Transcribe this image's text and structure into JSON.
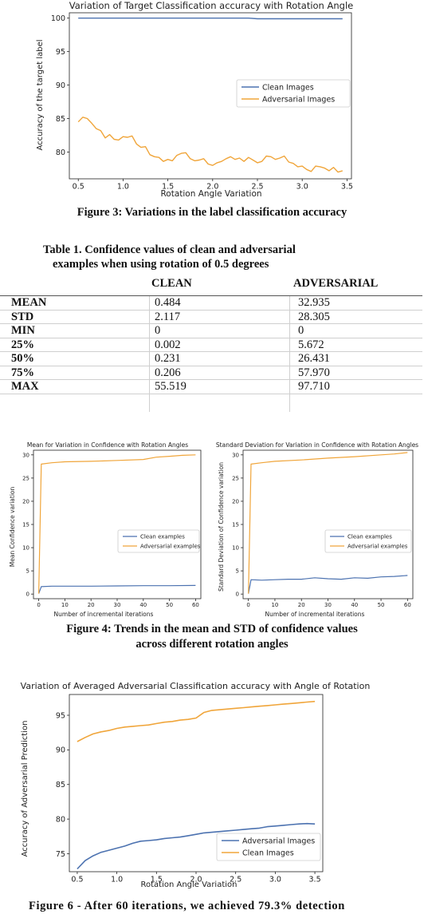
{
  "figure3": {
    "caption": "Figure 3: Variations in the label classification accuracy",
    "chart_data": {
      "type": "line",
      "title": "Variation of Target Classification accuracy with Rotation Angle",
      "xlabel": "Rotation Angle Variation",
      "ylabel": "Accuracy of the target label",
      "xlim": [
        0.4,
        3.55
      ],
      "ylim": [
        76,
        100.8
      ],
      "xticks": [
        "0.5",
        "1.0",
        "1.5",
        "2.0",
        "2.5",
        "3.0",
        "3.5"
      ],
      "yticks": [
        "80",
        "85",
        "90",
        "95",
        "100"
      ],
      "legend_position": "center-right",
      "series": [
        {
          "name": "Clean Images",
          "color": "#4c72b0",
          "x": [
            0.5,
            1.0,
            1.5,
            2.0,
            2.4,
            2.5,
            3.0,
            3.45
          ],
          "y": [
            100,
            100,
            100,
            100,
            100,
            99.9,
            99.9,
            99.9
          ]
        },
        {
          "name": "Adversarial Images",
          "color": "#f0a53a",
          "x": [
            0.5,
            0.55,
            0.6,
            0.65,
            0.7,
            0.75,
            0.8,
            0.85,
            0.9,
            0.95,
            1.0,
            1.05,
            1.1,
            1.15,
            1.2,
            1.25,
            1.3,
            1.35,
            1.4,
            1.45,
            1.5,
            1.55,
            1.6,
            1.65,
            1.7,
            1.75,
            1.8,
            1.85,
            1.9,
            1.95,
            2.0,
            2.05,
            2.1,
            2.15,
            2.2,
            2.25,
            2.3,
            2.35,
            2.4,
            2.45,
            2.5,
            2.55,
            2.6,
            2.65,
            2.7,
            2.75,
            2.8,
            2.85,
            2.9,
            2.95,
            3.0,
            3.05,
            3.1,
            3.15,
            3.2,
            3.25,
            3.3,
            3.35,
            3.4,
            3.45
          ],
          "y": [
            84.5,
            85.2,
            85.0,
            84.3,
            83.5,
            83.2,
            82.1,
            82.6,
            81.9,
            81.8,
            82.3,
            82.2,
            82.4,
            81.2,
            80.7,
            80.8,
            79.6,
            79.3,
            79.2,
            78.6,
            78.9,
            78.7,
            79.5,
            79.8,
            79.9,
            79.0,
            78.7,
            78.8,
            79.0,
            78.2,
            78.0,
            78.4,
            78.6,
            79.0,
            79.3,
            78.9,
            79.1,
            78.6,
            79.2,
            78.8,
            78.4,
            78.6,
            79.4,
            79.3,
            78.9,
            79.1,
            79.4,
            78.5,
            78.3,
            77.8,
            77.9,
            77.4,
            77.1,
            77.9,
            77.8,
            77.6,
            77.2,
            77.7,
            77.0,
            77.2
          ]
        }
      ]
    }
  },
  "table1": {
    "title_line1": "Table 1. Confidence values of clean and adversarial",
    "title_line2": "examples when using rotation of 0.5 degrees",
    "col_clean": "CLEAN",
    "col_adv": "ADVERSARIAL",
    "rows": [
      {
        "label": "MEAN",
        "clean": "0.484",
        "adv": "32.935"
      },
      {
        "label": "STD",
        "clean": "2.117",
        "adv": "28.305"
      },
      {
        "label": "MIN",
        "clean": "0",
        "adv": "0"
      },
      {
        "label": "25%",
        "clean": "0.002",
        "adv": "5.672"
      },
      {
        "label": "50%",
        "clean": "0.231",
        "adv": "26.431"
      },
      {
        "label": "75%",
        "clean": "0.206",
        "adv": "57.970"
      },
      {
        "label": "MAX",
        "clean": "55.519",
        "adv": "97.710"
      }
    ]
  },
  "figure4": {
    "caption_line1": "Figure 4: Trends in the mean and STD of confidence values",
    "caption_line2": "across different rotation angles",
    "chart_data": [
      {
        "type": "line",
        "title": "Mean for Variation in Confidence with Rotation Angles",
        "xlabel": "Number of incremental iterations",
        "ylabel": "Mean Confidence variation",
        "xlim": [
          -2,
          62
        ],
        "ylim": [
          -1,
          31
        ],
        "xticks": [
          "0",
          "10",
          "20",
          "30",
          "40",
          "50",
          "60"
        ],
        "yticks": [
          "0",
          "5",
          "10",
          "15",
          "20",
          "25",
          "30"
        ],
        "legend_position": "center-right",
        "series": [
          {
            "name": "Clean examples",
            "color": "#4c72b0",
            "x": [
              0,
              1,
              5,
              10,
              20,
              30,
              40,
              50,
              60
            ],
            "y": [
              0.1,
              1.6,
              1.7,
              1.7,
              1.7,
              1.75,
              1.8,
              1.8,
              1.85
            ]
          },
          {
            "name": "Adversarial examples",
            "color": "#f0a53a",
            "x": [
              0,
              1,
              5,
              10,
              20,
              30,
              40,
              45,
              50,
              55,
              60
            ],
            "y": [
              0.1,
              28.0,
              28.3,
              28.5,
              28.6,
              28.8,
              29.0,
              29.5,
              29.7,
              29.9,
              30.0
            ]
          }
        ]
      },
      {
        "type": "line",
        "title": "Standard Deviation for Variation in Confidence with Rotation Angles",
        "xlabel": "Number of incremental iterations",
        "ylabel": "Standard Deviation of Confidence variation",
        "xlim": [
          -2,
          62
        ],
        "ylim": [
          -1,
          31
        ],
        "xticks": [
          "0",
          "10",
          "20",
          "30",
          "40",
          "50",
          "60"
        ],
        "yticks": [
          "0",
          "5",
          "10",
          "15",
          "20",
          "25",
          "30"
        ],
        "legend_position": "center-right",
        "series": [
          {
            "name": "Clean examples",
            "color": "#4c72b0",
            "x": [
              0,
              1,
              5,
              10,
              15,
              20,
              25,
              30,
              35,
              40,
              45,
              50,
              55,
              60
            ],
            "y": [
              0.1,
              3.1,
              3.0,
              3.1,
              3.2,
              3.2,
              3.5,
              3.3,
              3.2,
              3.5,
              3.4,
              3.7,
              3.8,
              4.0
            ]
          },
          {
            "name": "Adversarial examples",
            "color": "#f0a53a",
            "x": [
              0,
              1,
              5,
              10,
              20,
              30,
              40,
              50,
              55,
              60
            ],
            "y": [
              0.1,
              28.0,
              28.3,
              28.6,
              28.9,
              29.3,
              29.6,
              30.0,
              30.2,
              30.5
            ]
          }
        ]
      }
    ]
  },
  "figure6": {
    "caption_line1": "Figure 6 - After 60 iterations, we achieved 79.3% detection",
    "chart_data": {
      "type": "line",
      "title": "Variation of Averaged Adversarial Classification accuracy with Angle of Rotation",
      "xlabel": "Rotation Angle Variation",
      "ylabel": "Accuracy of Adversarial Prediction",
      "xlim": [
        0.4,
        3.6
      ],
      "ylim": [
        72.4,
        98
      ],
      "xticks": [
        "0.5",
        "1.0",
        "1.5",
        "2.0",
        "2.5",
        "3.0",
        "3.5"
      ],
      "yticks": [
        "75",
        "80",
        "85",
        "90",
        "95"
      ],
      "legend_position": "bottom-right",
      "series": [
        {
          "name": "Adversarial Images",
          "color": "#4c72b0",
          "x": [
            0.5,
            0.6,
            0.7,
            0.8,
            0.9,
            1.0,
            1.1,
            1.2,
            1.3,
            1.4,
            1.5,
            1.6,
            1.7,
            1.8,
            1.9,
            2.0,
            2.1,
            2.2,
            2.3,
            2.4,
            2.5,
            2.6,
            2.7,
            2.8,
            2.9,
            3.0,
            3.1,
            3.2,
            3.3,
            3.4,
            3.5
          ],
          "y": [
            72.8,
            74.0,
            74.7,
            75.2,
            75.5,
            75.8,
            76.1,
            76.5,
            76.8,
            76.9,
            77.0,
            77.2,
            77.3,
            77.4,
            77.6,
            77.8,
            78.0,
            78.1,
            78.2,
            78.3,
            78.4,
            78.5,
            78.6,
            78.7,
            78.9,
            79.0,
            79.1,
            79.2,
            79.3,
            79.35,
            79.3
          ]
        },
        {
          "name": "Clean Images",
          "color": "#f0a53a",
          "x": [
            0.5,
            0.6,
            0.7,
            0.8,
            0.9,
            1.0,
            1.1,
            1.2,
            1.3,
            1.4,
            1.5,
            1.6,
            1.7,
            1.8,
            1.9,
            2.0,
            2.1,
            2.2,
            2.3,
            2.4,
            2.5,
            2.6,
            2.7,
            2.8,
            2.9,
            3.0,
            3.1,
            3.2,
            3.3,
            3.4,
            3.5
          ],
          "y": [
            91.2,
            91.8,
            92.3,
            92.6,
            92.8,
            93.1,
            93.3,
            93.4,
            93.5,
            93.6,
            93.8,
            94.0,
            94.1,
            94.3,
            94.4,
            94.6,
            95.4,
            95.7,
            95.8,
            95.9,
            96.0,
            96.1,
            96.2,
            96.3,
            96.4,
            96.5,
            96.6,
            96.7,
            96.8,
            96.9,
            97.0
          ]
        }
      ]
    }
  }
}
